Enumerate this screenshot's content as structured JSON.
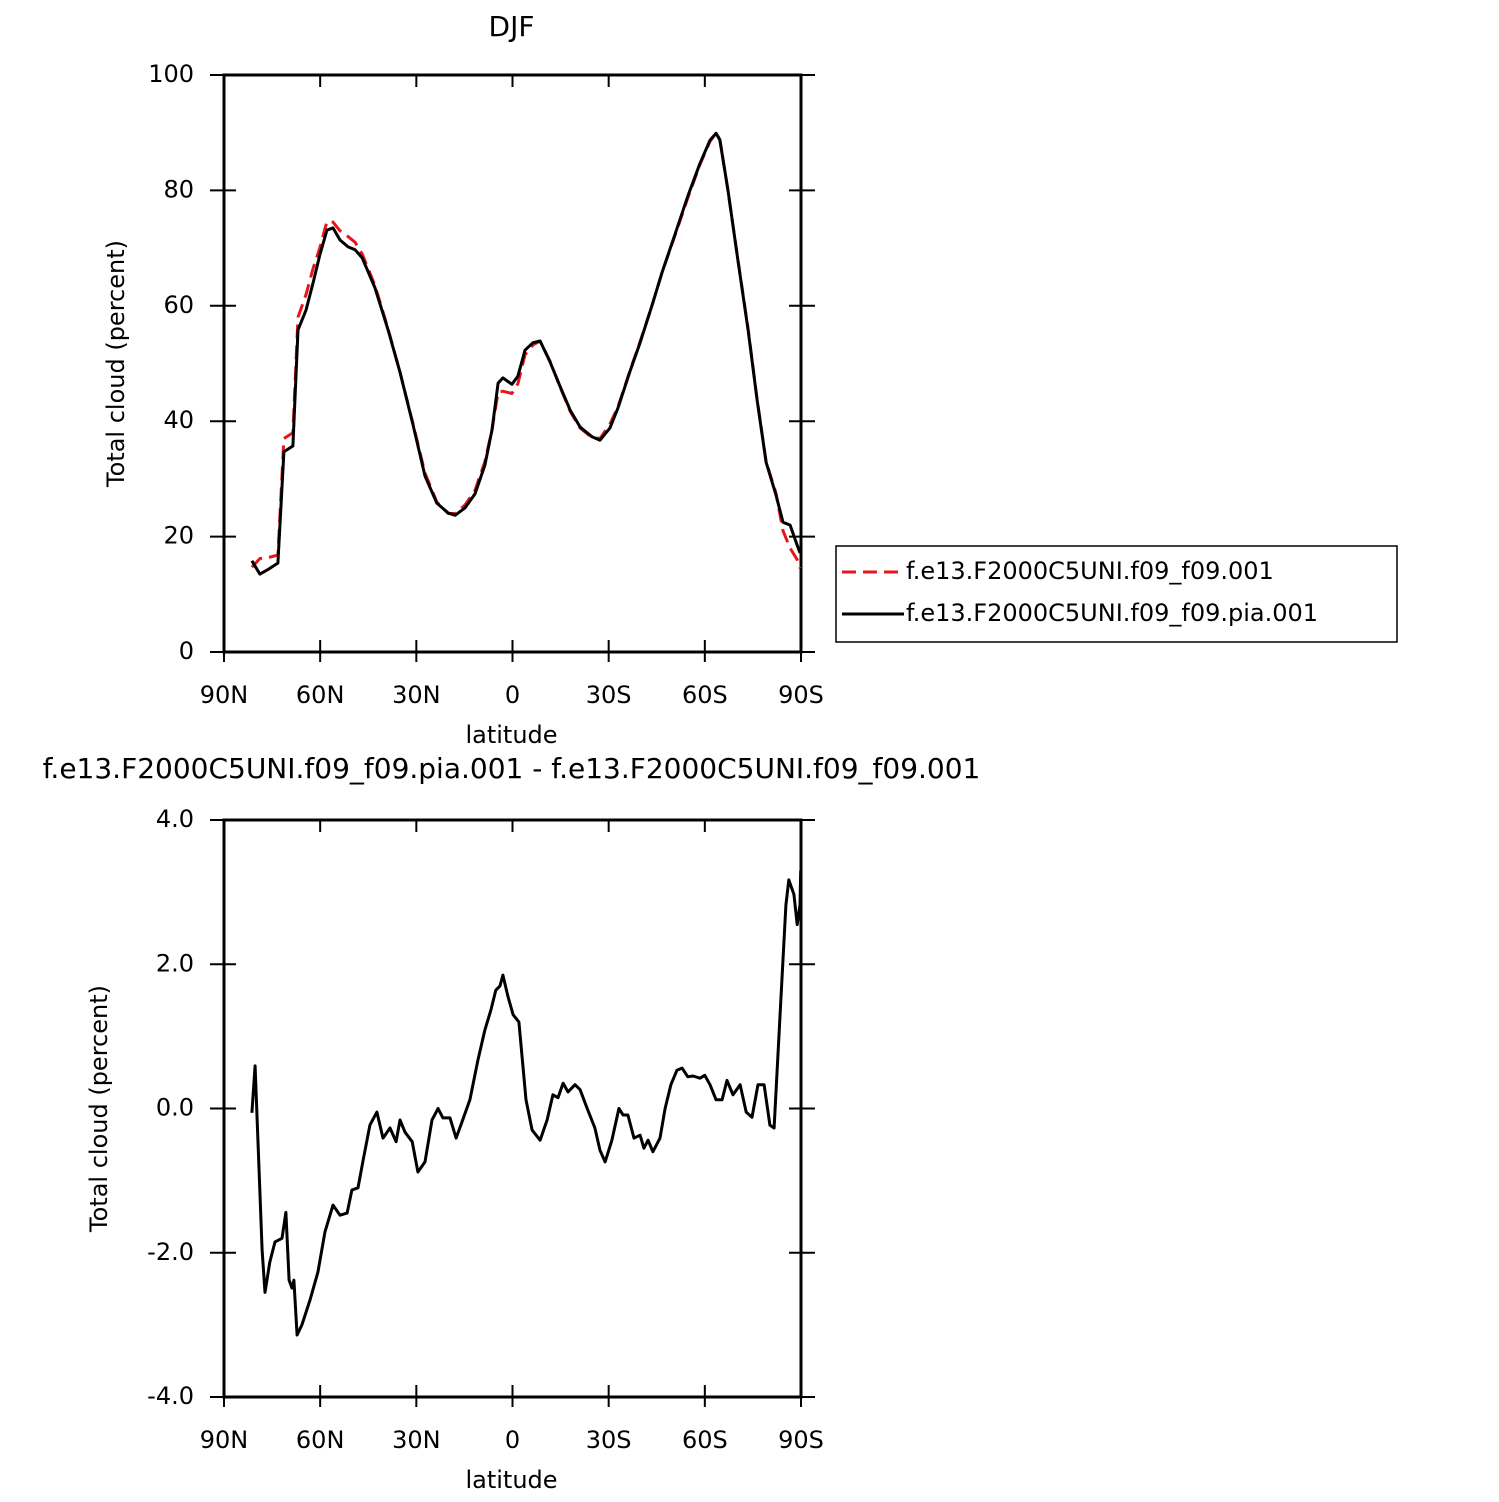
{
  "chart_data": [
    {
      "type": "line",
      "title": "DJF",
      "xlabel": "latitude",
      "ylabel": "Total cloud (percent)",
      "x": [
        81.3,
        78.8,
        76.6,
        73.2,
        71.3,
        68.5,
        66.9,
        64.4,
        62.2,
        60.1,
        57.9,
        56.0,
        53.8,
        51.3,
        49.1,
        46.9,
        42.9,
        38.8,
        35.1,
        31.0,
        27.3,
        23.6,
        20.1,
        17.9,
        14.8,
        11.7,
        8.6,
        6.4,
        4.5,
        3.0,
        0.2,
        -1.7,
        -3.9,
        -6.4,
        -8.6,
        -11.7,
        -14.8,
        -18.0,
        -21.1,
        -24.8,
        -27.3,
        -30.4,
        -32.9,
        -36.7,
        -39.8,
        -43.5,
        -46.6,
        -50.7,
        -54.7,
        -58.5,
        -61.6,
        -63.5,
        -64.7,
        -67.2,
        -70.3,
        -73.5,
        -76.3,
        -79.1,
        -82.2,
        -84.4,
        -86.6,
        -88.8,
        -89.7
      ],
      "series": [
        {
          "name": "f.e13.F2000C5UNI.f09_f09.001",
          "color": "#e8161b",
          "line_style": "dashed",
          "values": [
            14.7,
            16.2,
            16.3,
            16.8,
            37,
            38,
            58,
            62,
            66.5,
            70,
            74.6,
            74.5,
            73,
            72,
            71,
            69,
            63.5,
            56,
            48.5,
            39.5,
            31,
            26,
            24,
            24,
            25.5,
            28,
            33,
            38.5,
            45,
            45.2,
            44.8,
            46.5,
            51.5,
            53.2,
            53.9,
            50.4,
            46,
            41.7,
            38.8,
            37.2,
            37,
            39.5,
            42.5,
            48.8,
            53.8,
            60,
            65.7,
            72.2,
            78.7,
            84.5,
            88.5,
            90,
            88.8,
            80,
            68,
            56,
            43.8,
            33,
            27.5,
            21,
            18,
            16,
            14.5
          ]
        },
        {
          "name": "f.e13.F2000C5UNI.f09_f09.pia.001",
          "color": "#000000",
          "line_style": "solid",
          "values": [
            15.8,
            13.5,
            14.2,
            15.4,
            34.7,
            35.7,
            55.8,
            59.3,
            64.0,
            68.8,
            73.1,
            73.5,
            71.4,
            70.2,
            69.7,
            68.3,
            63.1,
            55.8,
            48.5,
            39.3,
            30.5,
            25.8,
            24.1,
            23.7,
            25.0,
            27.4,
            32.4,
            38.5,
            46.6,
            47.5,
            46.4,
            47.8,
            52.3,
            53.6,
            53.9,
            50.3,
            46.1,
            41.9,
            39.0,
            37.3,
            36.7,
            38.8,
            42.3,
            48.7,
            53.6,
            60.0,
            65.7,
            72.4,
            79.0,
            84.7,
            88.7,
            89.9,
            88.7,
            80.1,
            67.9,
            55.8,
            43.7,
            32.9,
            27.2,
            22.5,
            22.0,
            18.5,
            17.2
          ]
        }
      ],
      "xlim": [
        90,
        -90
      ],
      "xticks": [
        {
          "value": 90,
          "label": "90N"
        },
        {
          "value": 60,
          "label": "60N"
        },
        {
          "value": 30,
          "label": "30N"
        },
        0,
        {
          "value": -30,
          "label": "30S"
        },
        {
          "value": -60,
          "label": "60S"
        },
        {
          "value": -90,
          "label": "90S"
        }
      ],
      "ylim": [
        0,
        100
      ],
      "yticks": [
        0,
        20,
        40,
        60,
        80,
        100
      ],
      "legend": "right"
    },
    {
      "type": "line",
      "title": "f.e13.F2000C5UNI.f09_f09.pia.001 - f.e13.F2000C5UNI.f09_f09.001",
      "xlabel": "latitude",
      "ylabel": "Total cloud (percent)",
      "x": [
        81.3,
        80.3,
        78.1,
        77.2,
        75.7,
        74.1,
        71.9,
        70.7,
        69.7,
        68.8,
        68.2,
        67.2,
        65.7,
        63.2,
        60.7,
        58.5,
        56.0,
        53.8,
        51.6,
        50.1,
        48.2,
        46.6,
        44.5,
        42.3,
        40.4,
        38.2,
        36.3,
        35.1,
        33.5,
        31.3,
        29.5,
        27.3,
        25.1,
        23.2,
        21.7,
        19.5,
        17.6,
        15.8,
        13.3,
        10.8,
        8.6,
        6.7,
        5.2,
        3.9,
        3.0,
        1.4,
        -0.2,
        -2.0,
        -4.2,
        -6.1,
        -8.6,
        -10.8,
        -12.6,
        -14.2,
        -15.8,
        -17.3,
        -19.5,
        -21.1,
        -23.3,
        -25.7,
        -27.3,
        -28.9,
        -31.0,
        -33.2,
        -34.5,
        -36.0,
        -37.9,
        -39.8,
        -41.0,
        -42.3,
        -43.8,
        -46.0,
        -47.6,
        -49.4,
        -51.3,
        -52.9,
        -54.7,
        -56.3,
        -58.5,
        -60.0,
        -61.6,
        -63.5,
        -65.4,
        -66.9,
        -68.8,
        -71.0,
        -72.9,
        -74.7,
        -76.6,
        -78.5,
        -80.3,
        -81.6,
        -83.4,
        -85.3,
        -86.2,
        -87.8,
        -88.8,
        -89.7,
        -89.9
      ],
      "values": [
        -0.06,
        0.59,
        -1.96,
        -2.55,
        -2.13,
        -1.85,
        -1.8,
        -1.44,
        -2.38,
        -2.49,
        -2.38,
        -3.14,
        -3.0,
        -2.66,
        -2.27,
        -1.71,
        -1.34,
        -1.48,
        -1.45,
        -1.13,
        -1.1,
        -0.72,
        -0.23,
        -0.05,
        -0.41,
        -0.27,
        -0.46,
        -0.16,
        -0.33,
        -0.46,
        -0.88,
        -0.74,
        -0.16,
        0.0,
        -0.13,
        -0.13,
        -0.41,
        -0.19,
        0.12,
        0.67,
        1.09,
        1.37,
        1.64,
        1.7,
        1.85,
        1.55,
        1.3,
        1.2,
        0.12,
        -0.3,
        -0.44,
        -0.16,
        0.19,
        0.15,
        0.35,
        0.23,
        0.33,
        0.26,
        0.0,
        -0.27,
        -0.58,
        -0.74,
        -0.44,
        0.0,
        -0.09,
        -0.09,
        -0.41,
        -0.37,
        -0.55,
        -0.44,
        -0.6,
        -0.41,
        0.0,
        0.33,
        0.53,
        0.56,
        0.44,
        0.45,
        0.42,
        0.46,
        0.33,
        0.12,
        0.12,
        0.39,
        0.19,
        0.33,
        -0.05,
        -0.12,
        0.33,
        0.33,
        -0.23,
        -0.27,
        1.23,
        2.82,
        3.17,
        2.97,
        2.55,
        2.82,
        3.3
      ],
      "color": "#000000",
      "xlim": [
        90,
        -90
      ],
      "xticks": [
        {
          "value": 90,
          "label": "90N"
        },
        {
          "value": 60,
          "label": "60N"
        },
        {
          "value": 30,
          "label": "30N"
        },
        0,
        {
          "value": -30,
          "label": "30S"
        },
        {
          "value": -60,
          "label": "60S"
        },
        {
          "value": -90,
          "label": "90S"
        }
      ],
      "ylim": [
        -4,
        4
      ],
      "yticks": [
        {
          "value": -4,
          "label": "-4.0"
        },
        {
          "value": -2,
          "label": "-2.0"
        },
        {
          "value": 0,
          "label": "0.0"
        },
        {
          "value": 2,
          "label": "2.0"
        },
        {
          "value": 4,
          "label": "4.0"
        }
      ]
    }
  ]
}
